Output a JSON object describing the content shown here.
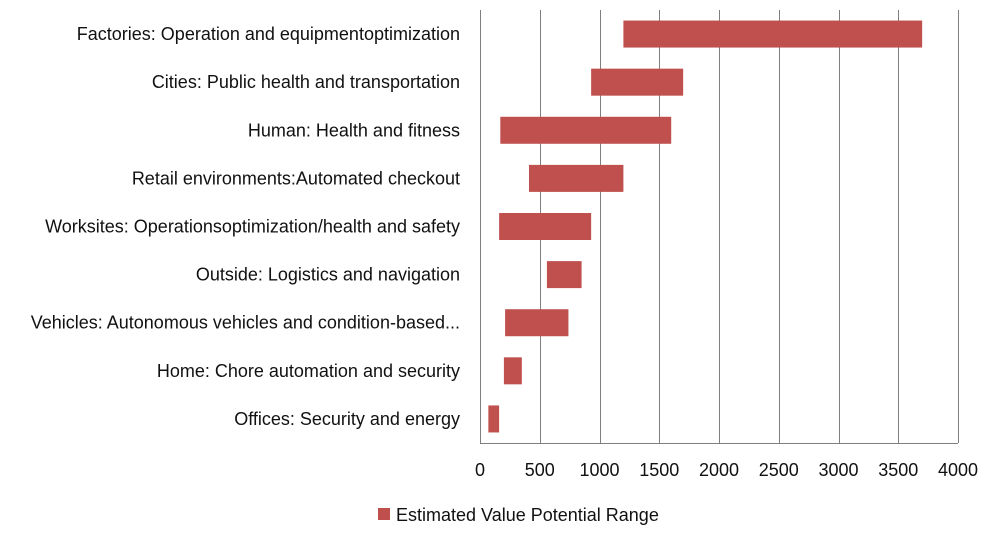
{
  "chart_data": {
    "type": "bar",
    "orientation": "horizontal",
    "title": "",
    "xlabel": "",
    "ylabel": "",
    "xlim": [
      0,
      4000
    ],
    "x_ticks": [
      0,
      500,
      1000,
      1500,
      2000,
      2500,
      3000,
      3500,
      4000
    ],
    "grid": true,
    "categories": [
      "Factories: Operation and equipmentoptimization",
      "Cities: Public health and transportation",
      "Human: Health and fitness",
      "Retail environments:Automated checkout",
      "Worksites: Operationsoptimization/health and safety",
      "Outside: Logistics and navigation",
      "Vehicles: Autonomous vehicles and condition-based...",
      "Home: Chore automation and security",
      "Offices: Security and energy"
    ],
    "series": [
      {
        "name": "Estimated Value Potential Range",
        "color": "#c0504d",
        "ranges": [
          [
            1200,
            3700
          ],
          [
            930,
            1700
          ],
          [
            170,
            1600
          ],
          [
            410,
            1200
          ],
          [
            160,
            930
          ],
          [
            560,
            850
          ],
          [
            210,
            740
          ],
          [
            200,
            350
          ],
          [
            70,
            160
          ]
        ]
      }
    ],
    "legend": {
      "position": "bottom"
    }
  }
}
